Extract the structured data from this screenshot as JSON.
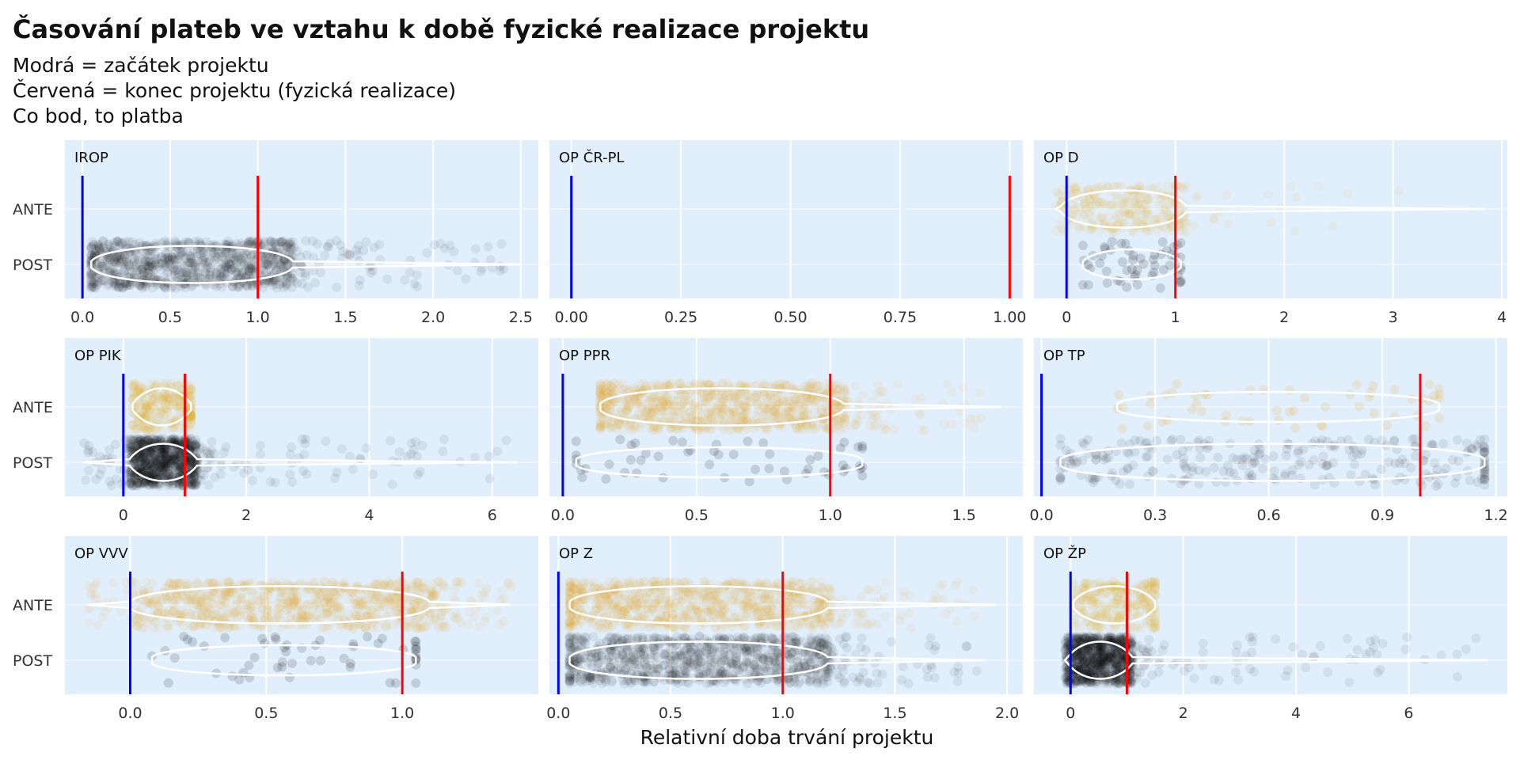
{
  "title": "Časování plateb ve vztahu k době fyzické realizace projektu",
  "subtitle_lines": [
    "Modrá = začátek projektu",
    "Červená = konec projektu (fyzická realizace)",
    "Co bod, to platba"
  ],
  "colors": {
    "panel_bg": "#e1effd",
    "start_line": "#0000ff",
    "end_line": "#ff0000",
    "ante_points": "#e8a20c",
    "post_points": "#000000",
    "violin": "#ffffff"
  },
  "chart_data": {
    "type": "scatter",
    "xlabel": "Relativní doba trvání projektu",
    "ylabel": "",
    "categories": [
      "ANTE",
      "POST"
    ],
    "grid": true,
    "facets": [
      {
        "name": "IROP",
        "xlim": [
          -0.1,
          2.6
        ],
        "ticks": [
          0.0,
          0.5,
          1.0,
          1.5,
          2.0,
          2.5
        ],
        "tick_labels": [
          "0.0",
          "0.5",
          "1.0",
          "1.5",
          "2.0",
          "2.5"
        ],
        "series": [
          {
            "name": "POST",
            "density": "heavy",
            "core": [
              0.05,
              1.2
            ],
            "range": [
              0.05,
              2.5
            ]
          }
        ]
      },
      {
        "name": "OP ČR-PL",
        "xlim": [
          -0.05,
          1.03
        ],
        "ticks": [
          0.0,
          0.25,
          0.5,
          0.75,
          1.0
        ],
        "tick_labels": [
          "0.00",
          "0.25",
          "0.50",
          "0.75",
          "1.00"
        ],
        "series": []
      },
      {
        "name": "OP D",
        "xlim": [
          -0.3,
          4.05
        ],
        "ticks": [
          0,
          1,
          2,
          3,
          4
        ],
        "tick_labels": [
          "0",
          "1",
          "2",
          "3",
          "4"
        ],
        "series": [
          {
            "name": "ANTE",
            "density": "medium",
            "core": [
              -0.05,
              1.1
            ],
            "range": [
              -0.1,
              3.85
            ]
          },
          {
            "name": "POST",
            "density": "light",
            "core": [
              0.15,
              1.05
            ],
            "range": [
              0.15,
              1.05
            ]
          }
        ]
      },
      {
        "name": "OP PIK",
        "xlim": [
          -0.95,
          6.75
        ],
        "ticks": [
          0,
          2,
          4,
          6
        ],
        "tick_labels": [
          "0",
          "2",
          "4",
          "6"
        ],
        "series": [
          {
            "name": "ANTE",
            "density": "medium",
            "core": [
              0.15,
              1.1
            ],
            "range": [
              0.15,
              1.1
            ]
          },
          {
            "name": "POST",
            "density": "heavy",
            "core": [
              0.1,
              1.2
            ],
            "range": [
              -0.65,
              6.4
            ]
          }
        ]
      },
      {
        "name": "OP PPR",
        "xlim": [
          -0.05,
          1.72
        ],
        "ticks": [
          0.0,
          0.5,
          1.0,
          1.5
        ],
        "tick_labels": [
          "0.0",
          "0.5",
          "1.0",
          "1.5"
        ],
        "series": [
          {
            "name": "ANTE",
            "density": "heavy",
            "core": [
              0.14,
              1.05
            ],
            "range": [
              0.14,
              1.64
            ]
          },
          {
            "name": "POST",
            "density": "light",
            "core": [
              0.05,
              1.12
            ],
            "range": [
              0.05,
              1.12
            ]
          }
        ]
      },
      {
        "name": "OP TP",
        "xlim": [
          -0.02,
          1.23
        ],
        "ticks": [
          0.0,
          0.3,
          0.6,
          0.9,
          1.2
        ],
        "tick_labels": [
          "0.0",
          "0.3",
          "0.6",
          "0.9",
          "1.2"
        ],
        "series": [
          {
            "name": "ANTE",
            "density": "light",
            "core": [
              0.2,
              1.05
            ],
            "range": [
              0.2,
              1.05
            ]
          },
          {
            "name": "POST",
            "density": "medium",
            "core": [
              0.05,
              1.17
            ],
            "range": [
              0.05,
              1.17
            ]
          }
        ]
      },
      {
        "name": "OP VVV",
        "xlim": [
          -0.24,
          1.5
        ],
        "ticks": [
          0.0,
          0.5,
          1.0
        ],
        "tick_labels": [
          "0.0",
          "0.5",
          "1.0"
        ],
        "series": [
          {
            "name": "ANTE",
            "density": "heavy",
            "core": [
              0.0,
              1.1
            ],
            "range": [
              -0.16,
              1.4
            ]
          },
          {
            "name": "POST",
            "density": "light",
            "core": [
              0.08,
              1.05
            ],
            "range": [
              0.08,
              1.05
            ]
          }
        ]
      },
      {
        "name": "OP Z",
        "xlim": [
          -0.04,
          2.07
        ],
        "ticks": [
          0.0,
          0.5,
          1.0,
          1.5,
          2.0
        ],
        "tick_labels": [
          "0.0",
          "0.5",
          "1.0",
          "1.5",
          "2.0"
        ],
        "series": [
          {
            "name": "ANTE",
            "density": "heavy",
            "core": [
              0.05,
              1.2
            ],
            "range": [
              0.05,
              1.95
            ]
          },
          {
            "name": "POST",
            "density": "heavy",
            "core": [
              0.05,
              1.2
            ],
            "range": [
              0.05,
              1.9
            ]
          }
        ]
      },
      {
        "name": "OP ŽP",
        "xlim": [
          -0.65,
          7.75
        ],
        "ticks": [
          0,
          2,
          4,
          6
        ],
        "tick_labels": [
          "0",
          "2",
          "4",
          "6"
        ],
        "series": [
          {
            "name": "ANTE",
            "density": "medium",
            "core": [
              0.05,
              1.5
            ],
            "range": [
              0.05,
              1.5
            ]
          },
          {
            "name": "POST",
            "density": "heavy",
            "core": [
              -0.05,
              1.1
            ],
            "range": [
              -0.1,
              7.4
            ]
          }
        ]
      }
    ]
  }
}
